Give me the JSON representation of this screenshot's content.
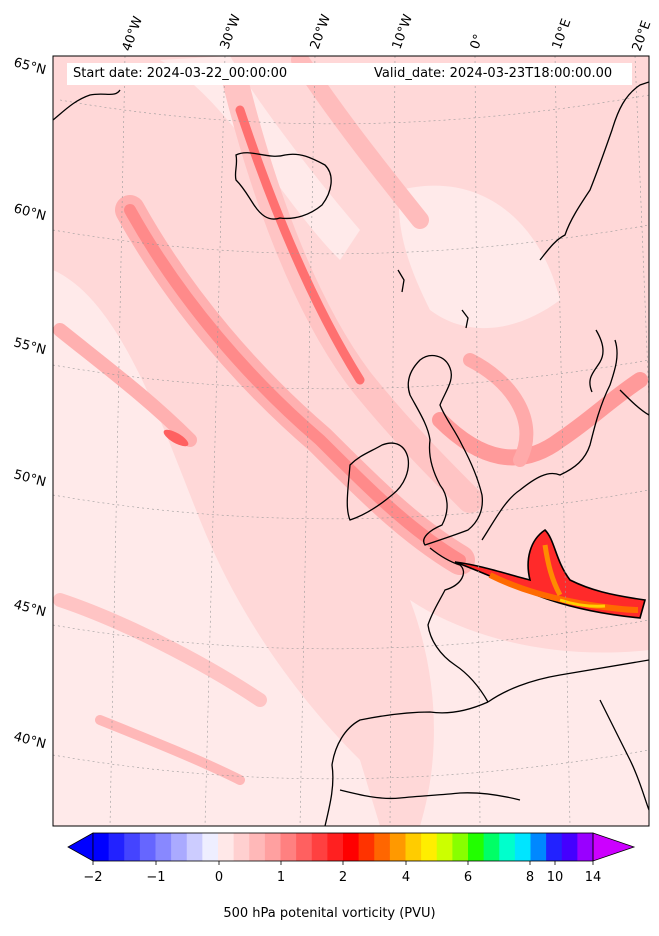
{
  "header": {
    "start_date": "Start date: 2024-03-22_00:00:00",
    "valid_date": "Valid_date: 2024-03-23T18:00:00.00"
  },
  "longitude_labels": [
    "40°W",
    "30°W",
    "20°W",
    "10°W",
    "0°",
    "10°E",
    "20°E"
  ],
  "latitude_labels": [
    "65°N",
    "60°N",
    "55°N",
    "50°N",
    "45°N",
    "40°N"
  ],
  "colorbar": {
    "title": "500 hPa potenital vorticity (PVU)",
    "ticks": [
      "−2",
      "−1",
      "0",
      "1",
      "2",
      "4",
      "6",
      "8",
      "10",
      "14"
    ],
    "colors": [
      "#0000ff",
      "#2222ff",
      "#4444ff",
      "#6666ff",
      "#8888ff",
      "#aaaaff",
      "#ccccff",
      "#eeeeff",
      "#ffe8e8",
      "#ffd0d0",
      "#ffb8b8",
      "#ffa0a0",
      "#ff8080",
      "#ff6060",
      "#ff4040",
      "#ff2020",
      "#ff0000",
      "#ff3300",
      "#ff6600",
      "#ff9900",
      "#ffcc00",
      "#ffee00",
      "#ccff00",
      "#88ff00",
      "#22ff00",
      "#00ff66",
      "#00ffcc",
      "#00e5ff",
      "#0088ff",
      "#2222ff",
      "#4400ff",
      "#9900ff"
    ],
    "under_color": "#0000ff",
    "over_color": "#cc00ff"
  }
}
